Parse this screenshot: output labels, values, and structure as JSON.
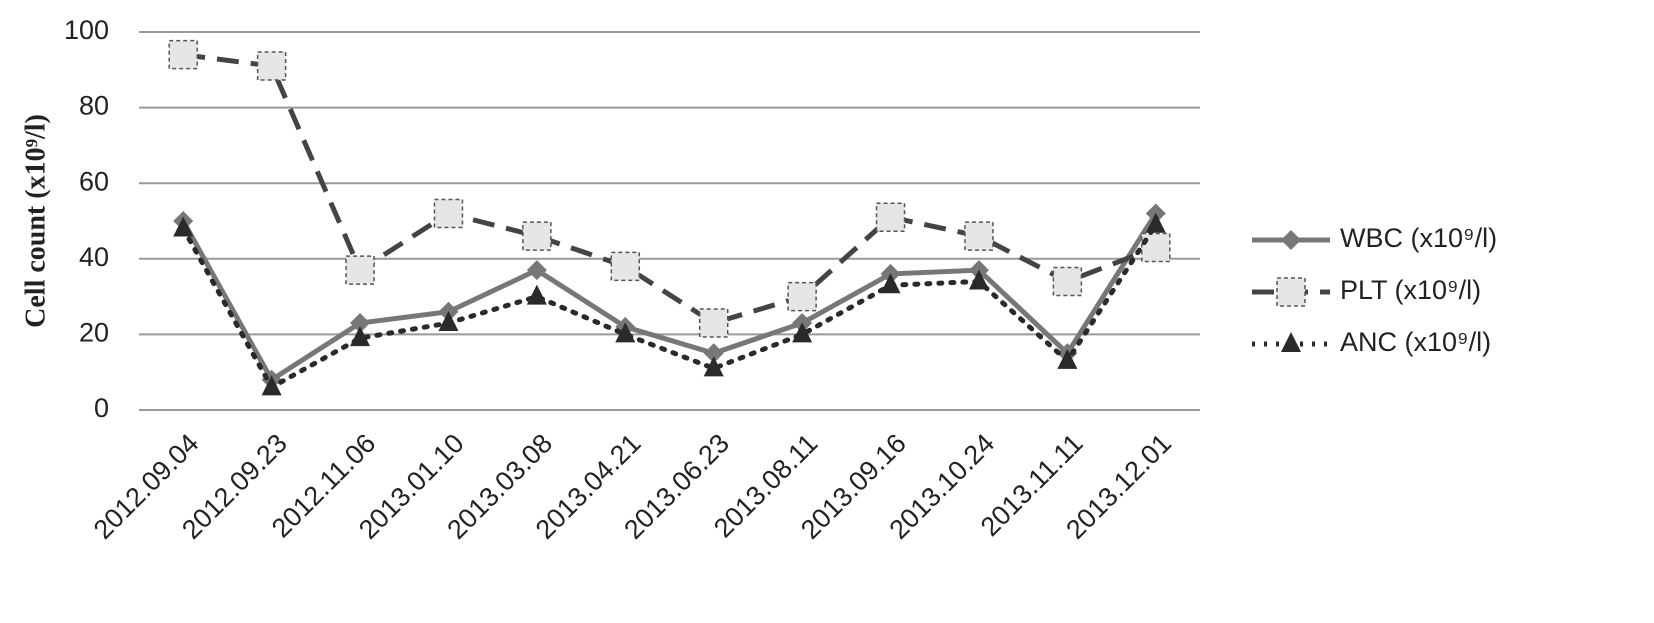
{
  "chart_data": {
    "type": "line",
    "y_label": "Cell count (x10⁹/l)",
    "categories": [
      "2012.09.04",
      "2012.09.23",
      "2012.11.06",
      "2013.01.10",
      "2013.03.08",
      "2013.04.21",
      "2013.06.23",
      "2013.08.11",
      "2013.09.16",
      "2013.10.24",
      "2013.11.11",
      "2013.12.01"
    ],
    "series": [
      {
        "name": "WBC (x10⁹/l)",
        "color": "#777777",
        "marker": "diamond",
        "dash": "solid",
        "values": [
          50,
          8,
          23,
          26,
          37,
          22,
          15,
          23,
          36,
          37,
          15,
          52
        ]
      },
      {
        "name": "PLT (x10⁹/l)",
        "color": "#444444",
        "marker": "square",
        "dash": "dashed",
        "values": [
          94,
          91,
          37,
          52,
          46,
          38,
          23,
          30,
          51,
          46,
          34,
          43
        ]
      },
      {
        "name": "ANC (x10⁹/l)",
        "color": "#2a2a2a",
        "marker": "triangle",
        "dash": "dotted",
        "values": [
          48,
          6,
          19,
          23,
          30,
          20,
          11,
          20,
          33,
          34,
          13,
          49
        ]
      }
    ],
    "ylim": [
      0,
      100
    ],
    "yticks": [
      0,
      20,
      40,
      60,
      80,
      100
    ],
    "grid": true,
    "legend": "right"
  }
}
